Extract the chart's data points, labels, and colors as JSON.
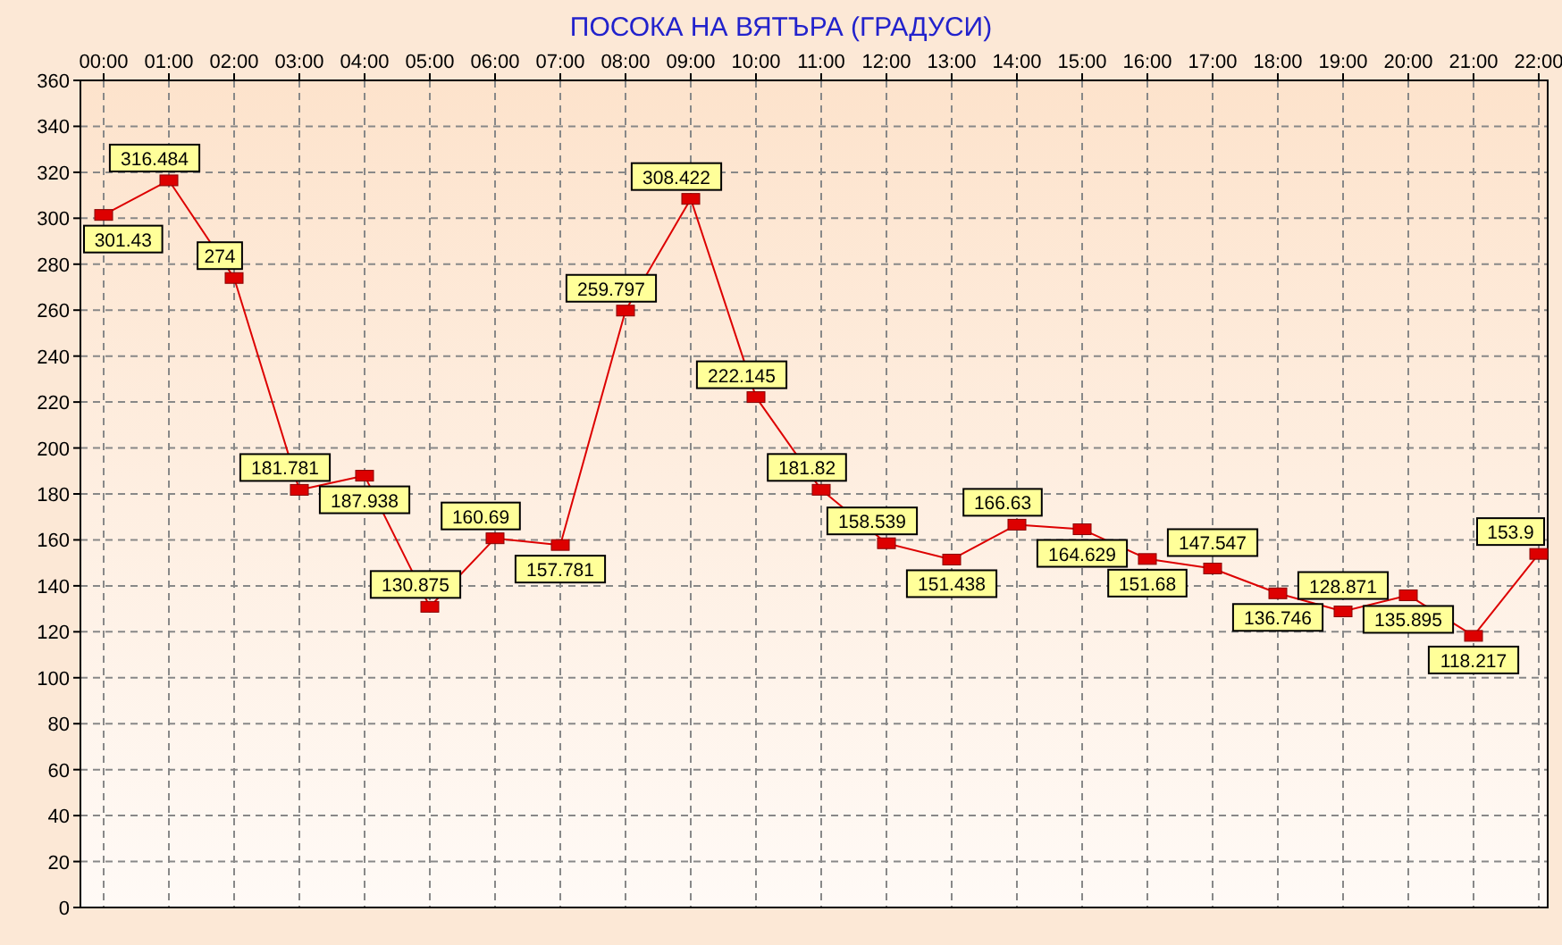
{
  "chart_data": {
    "type": "line",
    "title": "ПОСОКА НА ВЯТЪРА    (ГРАДУСИ)",
    "categories": [
      "00:00",
      "01:00",
      "02:00",
      "03:00",
      "04:00",
      "05:00",
      "06:00",
      "07:00",
      "08:00",
      "09:00",
      "10:00",
      "11:00",
      "12:00",
      "13:00",
      "14:00",
      "15:00",
      "16:00",
      "17:00",
      "18:00",
      "19:00",
      "20:00",
      "21:00",
      "22:00"
    ],
    "series": [
      {
        "color": "#dd0000",
        "values": [
          301.43,
          316.484,
          274,
          181.781,
          187.938,
          130.875,
          160.69,
          157.781,
          259.797,
          308.422,
          222.145,
          181.82,
          158.539,
          151.438,
          166.63,
          164.629,
          151.68,
          147.547,
          136.746,
          128.871,
          135.895,
          118.217,
          153.9
        ]
      }
    ],
    "ylim": [
      0,
      360
    ],
    "yticks": [
      0,
      20,
      40,
      60,
      80,
      100,
      120,
      140,
      160,
      180,
      200,
      220,
      240,
      260,
      280,
      300,
      320,
      340,
      360
    ],
    "grid": true,
    "marker": "square",
    "data_labels": true,
    "line_style": "solid"
  }
}
